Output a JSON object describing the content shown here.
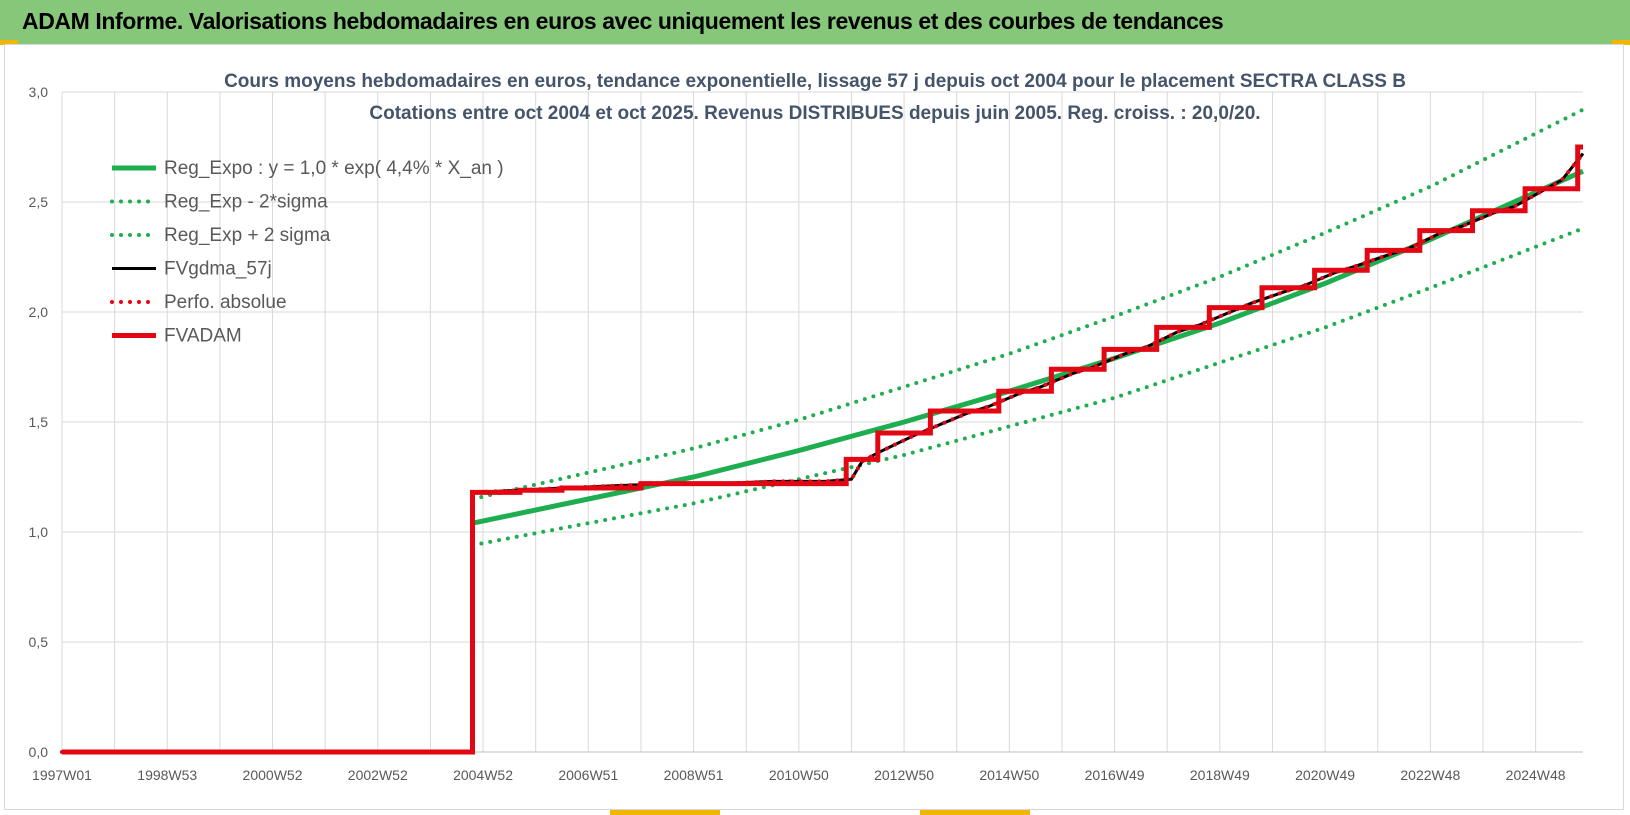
{
  "header": {
    "title": "ADAM Informe. Valorisations hebdomadaires en euros avec uniquement les revenus et des courbes de tendances"
  },
  "colors": {
    "banner": "#86c77a",
    "accent_corner": "#f2b600",
    "trend_green": "#1fae4f",
    "black": "#000000",
    "red": "#e30613",
    "grid": "#d9d9d9",
    "title_text": "#44546a",
    "tick_text": "#595959"
  },
  "chart_data": {
    "type": "line",
    "title_lines": [
      "Cours moyens hebdomadaires en euros, tendance exponentielle, lissage 57 j depuis oct 2004 pour le placement SECTRA CLASS B",
      "Cotations entre oct 2004 et oct 2025.  Revenus DISTRIBUES depuis juin 2005. Reg. croiss. : 20,0/20."
    ],
    "xlabel": "",
    "ylabel": "",
    "ylim": [
      0,
      3
    ],
    "xlim": [
      1997.0,
      2025.9
    ],
    "x_tick_labels": [
      "1997W01",
      "1998W53",
      "2000W52",
      "2002W52",
      "2004W52",
      "2006W51",
      "2008W51",
      "2010W50",
      "2012W50",
      "2014W50",
      "2016W49",
      "2018W49",
      "2020W49",
      "2022W48",
      "2024W48"
    ],
    "x_tick_positions": [
      1997.0,
      1999.0,
      2001.0,
      2003.0,
      2005.0,
      2007.0,
      2009.0,
      2011.0,
      2013.0,
      2015.0,
      2017.0,
      2019.0,
      2021.0,
      2023.0,
      2025.0
    ],
    "y_tick_labels": [
      "0,0",
      "0,5",
      "1,0",
      "1,5",
      "2,0",
      "2,5",
      "3,0"
    ],
    "y_tick_values": [
      0,
      0.5,
      1.0,
      1.5,
      2.0,
      2.5,
      3.0
    ],
    "grid": true,
    "legend_position": "top-left",
    "series": [
      {
        "name": "Reg_Expo : y = 1,0 * exp( 4,4% *  X_an )",
        "style": "solid",
        "color": "#1fae4f",
        "x": [
          2004.8,
          2007,
          2009,
          2011,
          2013,
          2015,
          2017,
          2019,
          2021,
          2023,
          2025.9
        ],
        "y": [
          1.04,
          1.15,
          1.25,
          1.37,
          1.5,
          1.64,
          1.79,
          1.95,
          2.13,
          2.33,
          2.64
        ]
      },
      {
        "name": "Reg_Exp - 2*sigma",
        "style": "dotted",
        "color": "#1fae4f",
        "x": [
          2004.8,
          2007,
          2009,
          2011,
          2013,
          2015,
          2017,
          2019,
          2021,
          2023,
          2025.9
        ],
        "y": [
          0.94,
          1.04,
          1.13,
          1.24,
          1.35,
          1.48,
          1.61,
          1.77,
          1.93,
          2.11,
          2.38
        ]
      },
      {
        "name": "Reg_Exp + 2 sigma",
        "style": "dotted",
        "color": "#1fae4f",
        "x": [
          2004.8,
          2007,
          2009,
          2011,
          2013,
          2015,
          2017,
          2019,
          2021,
          2023,
          2025.9
        ],
        "y": [
          1.15,
          1.27,
          1.38,
          1.51,
          1.66,
          1.81,
          1.98,
          2.16,
          2.36,
          2.57,
          2.92
        ]
      },
      {
        "name": "FVgdma_57j",
        "style": "solid",
        "color": "#000000",
        "x": [
          1997.0,
          2004.8,
          2004.8,
          2005.7,
          2006.5,
          2007.5,
          2008.5,
          2009.5,
          2010.5,
          2011.5,
          2012.0,
          2012.2,
          2012.5,
          2013.2,
          2013.6,
          2014.2,
          2014.6,
          2015.2,
          2015.6,
          2016.2,
          2016.6,
          2017.2,
          2017.6,
          2018.2,
          2018.6,
          2019.2,
          2019.6,
          2020.2,
          2020.6,
          2021.2,
          2021.6,
          2022.2,
          2022.6,
          2023.2,
          2023.6,
          2024.2,
          2024.6,
          2025.5,
          2025.9
        ],
        "y": [
          0.0,
          0.0,
          1.18,
          1.19,
          1.2,
          1.21,
          1.22,
          1.22,
          1.23,
          1.23,
          1.24,
          1.32,
          1.36,
          1.44,
          1.48,
          1.54,
          1.57,
          1.63,
          1.66,
          1.72,
          1.75,
          1.81,
          1.84,
          1.91,
          1.94,
          2.0,
          2.04,
          2.09,
          2.12,
          2.18,
          2.21,
          2.26,
          2.29,
          2.36,
          2.39,
          2.45,
          2.48,
          2.6,
          2.72
        ]
      },
      {
        "name": "Perfo. absolue",
        "style": "dotted",
        "color": "#e30613",
        "x": [
          1997.0,
          2004.8,
          2004.8,
          2005.7,
          2006.5,
          2007.5,
          2008.5,
          2009.5,
          2010.5,
          2011.5,
          2012.0,
          2012.2,
          2012.5,
          2013.2,
          2013.6,
          2014.2,
          2014.6,
          2015.2,
          2015.6,
          2016.2,
          2016.6,
          2017.2,
          2017.6,
          2018.2,
          2018.6,
          2019.2,
          2019.6,
          2020.2,
          2020.6,
          2021.2,
          2021.6,
          2022.2,
          2022.6,
          2023.2,
          2023.6,
          2024.2,
          2024.6,
          2025.5,
          2025.9
        ],
        "y": [
          0.0,
          0.0,
          1.18,
          1.19,
          1.2,
          1.21,
          1.22,
          1.22,
          1.23,
          1.23,
          1.24,
          1.32,
          1.36,
          1.44,
          1.48,
          1.54,
          1.57,
          1.63,
          1.66,
          1.72,
          1.75,
          1.81,
          1.84,
          1.91,
          1.94,
          2.0,
          2.04,
          2.09,
          2.12,
          2.18,
          2.21,
          2.26,
          2.29,
          2.36,
          2.39,
          2.45,
          2.48,
          2.6,
          2.72
        ]
      },
      {
        "name": "FVADAM",
        "style": "solid",
        "color": "#e30613",
        "x": [
          1997.0,
          2004.8,
          2004.8,
          2005.7,
          2005.7,
          2006.5,
          2006.5,
          2008.0,
          2008.0,
          2011.9,
          2011.9,
          2012.5,
          2012.5,
          2013.5,
          2013.5,
          2014.8,
          2014.8,
          2015.8,
          2015.8,
          2016.8,
          2016.8,
          2017.8,
          2017.8,
          2018.8,
          2018.8,
          2019.8,
          2019.8,
          2020.8,
          2020.8,
          2021.8,
          2021.8,
          2022.8,
          2022.8,
          2023.8,
          2023.8,
          2024.8,
          2024.8,
          2025.8,
          2025.8,
          2025.9
        ],
        "y": [
          0.0,
          0.0,
          1.18,
          1.18,
          1.19,
          1.19,
          1.2,
          1.2,
          1.22,
          1.22,
          1.33,
          1.33,
          1.45,
          1.45,
          1.55,
          1.55,
          1.64,
          1.64,
          1.74,
          1.74,
          1.83,
          1.83,
          1.93,
          1.93,
          2.02,
          2.02,
          2.11,
          2.11,
          2.19,
          2.19,
          2.28,
          2.28,
          2.37,
          2.37,
          2.46,
          2.46,
          2.56,
          2.56,
          2.75,
          2.75
        ]
      }
    ]
  }
}
